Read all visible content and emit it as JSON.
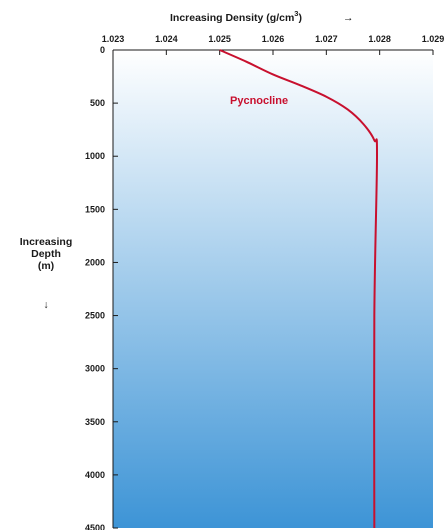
{
  "colors": {
    "curve": "#c8102e",
    "gradient_top": "#ffffff",
    "gradient_bottom": "#3d94d6",
    "axis": "#1a1a1a"
  },
  "chart_data": {
    "type": "line",
    "x_title": "Increasing Density (g/cm",
    "x_title_sup": "3",
    "x_title_close": ")",
    "x_title_arrow": "→",
    "y_title_lines": [
      "Increasing",
      "Depth",
      "(m)"
    ],
    "y_title_arrow": "↓",
    "x_axis_position": "top",
    "xlim": [
      1.023,
      1.029
    ],
    "ylim": [
      0,
      4500
    ],
    "y_inverted": true,
    "x_ticks": [
      "1.023",
      "1.024",
      "1.025",
      "1.026",
      "1.027",
      "1.028",
      "1.029"
    ],
    "y_ticks": [
      "0",
      "500",
      "1000",
      "1500",
      "2000",
      "2500",
      "3000",
      "3500",
      "4000",
      "4500"
    ],
    "grid": false,
    "annotation": "Pycnocline",
    "series": [
      {
        "x": [
          1.025,
          1.0255,
          1.026,
          1.0265,
          1.027,
          1.0274,
          1.0277,
          1.0279,
          1.02795,
          1.0279,
          1.0279
        ],
        "y": [
          0,
          110,
          230,
          330,
          440,
          560,
          700,
          850,
          1000,
          2500,
          4500
        ]
      }
    ]
  }
}
